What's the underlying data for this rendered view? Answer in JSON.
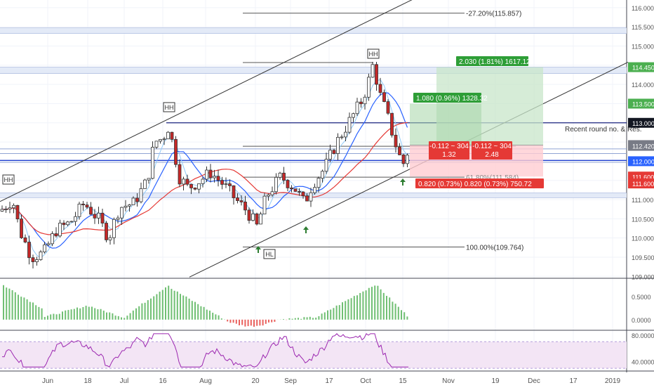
{
  "chart_data": {
    "type": "candlestick",
    "price_axis": {
      "ticks": [
        "116.000",
        "115.500",
        "115.000",
        "114.500",
        "114.000",
        "113.500",
        "113.000",
        "112.500",
        "112.000",
        "111.500",
        "111.000",
        "110.500",
        "110.000",
        "109.500",
        "109.000"
      ],
      "badges": [
        {
          "label": "114.450",
          "value": 114.45,
          "color": "#4caf50"
        },
        {
          "label": "113.500",
          "value": 113.5,
          "color": "#4caf50"
        },
        {
          "label": "113.000",
          "value": 113.0,
          "color": "#131722"
        },
        {
          "label": "112.420",
          "value": 112.42,
          "color": "#787b86"
        },
        {
          "label": "112.420",
          "value": 112.4,
          "color": "#787b86"
        },
        {
          "label": "112.000",
          "value": 112.0,
          "color": "#2962ff"
        },
        {
          "label": "111.600",
          "value": 111.6,
          "color": "#e53935"
        },
        {
          "label": "111.600",
          "value": 111.42,
          "color": "#e53935"
        }
      ]
    },
    "time_axis": [
      "Jun",
      "18",
      "Jul",
      "16",
      "Aug",
      "20",
      "Sep",
      "17",
      "Oct",
      "15",
      "Nov",
      "19",
      "Dec",
      "17",
      "2019"
    ],
    "osc_axis": {
      "ticks": [
        "0.5000",
        "0.0000"
      ],
      "range": [
        -0.2,
        0.85
      ]
    },
    "rsi_axis": {
      "ticks": [
        "80.0000",
        "40.0000"
      ],
      "range": [
        28,
        84
      ]
    },
    "annotations": {
      "fib_top": "-27.20%(115.857)",
      "fib_mid": "61.80%(111.584)",
      "fib_bottom": "100.00%(109.764)",
      "hh": "HH",
      "hl": "HL",
      "round_res": "Recent round no. & Res.",
      "target2": "2.030 (1.81%) 1617.12",
      "target1": "1.080 (0.96%) 1328.32",
      "stop": "0.820 (0.73%)  0.820 (0.73%) 750.72",
      "pos1_a": "-0.112 ~ 304",
      "pos1_b": "1.32",
      "pos2_a": "-0.112 ~ 304",
      "pos2_b": "2.48"
    },
    "colors": {
      "up": "#26a69a",
      "down": "#c62828",
      "ma_fast": "#2962ff",
      "ma_slow": "#e53935",
      "osc_up": "#4caf50",
      "osc_down": "#e53935",
      "rsi": "#9c27b0"
    }
  }
}
